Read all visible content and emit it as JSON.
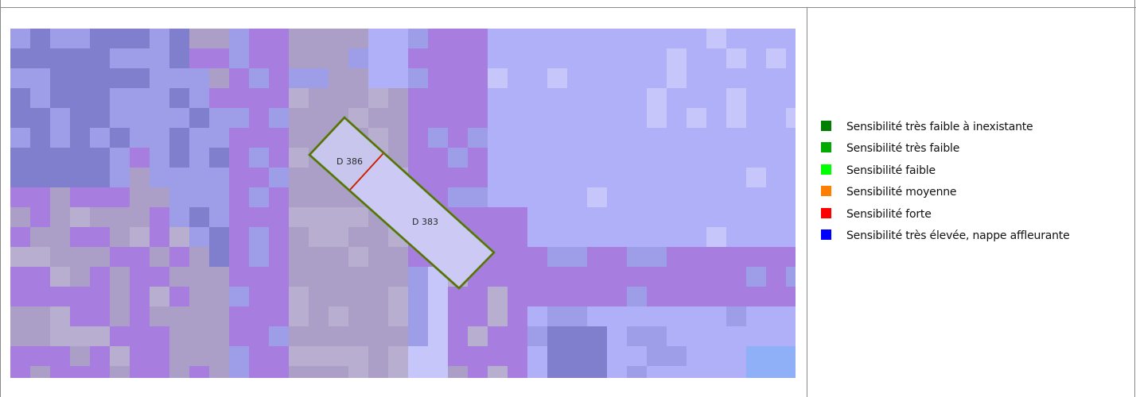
{
  "map": {
    "palette": {
      "light": "#b0b0f8",
      "lighter": "#c6c6fa",
      "mid": "#9e9ee8",
      "dark": "#7f7fce",
      "purple": "#a77ee0",
      "grey": "#ab9fc8",
      "greylight": "#b8aed0",
      "blue": "#8fb0f6"
    },
    "parcels": [
      {
        "id": "D 386",
        "label": "D 386",
        "fill": "#c9c6ee",
        "outline": "#22aa22",
        "border": "#cc2200"
      },
      {
        "id": "D 383",
        "label": "D 383",
        "fill": "#cccaf4",
        "outline": "#22aa22",
        "border": "#cc2200"
      }
    ]
  },
  "legend": {
    "items": [
      {
        "label": "Sensibilité très faible à inexistante",
        "color": "#008000"
      },
      {
        "label": "Sensibilité très faible",
        "color": "#00aa00"
      },
      {
        "label": "Sensibilité faible",
        "color": "#00ff00"
      },
      {
        "label": "Sensibilité moyenne",
        "color": "#ff8000"
      },
      {
        "label": "Sensibilité forte",
        "color": "#ff0000"
      },
      {
        "label": "Sensibilité très élevée, nappe affleurante",
        "color": "#0000ff"
      }
    ]
  }
}
